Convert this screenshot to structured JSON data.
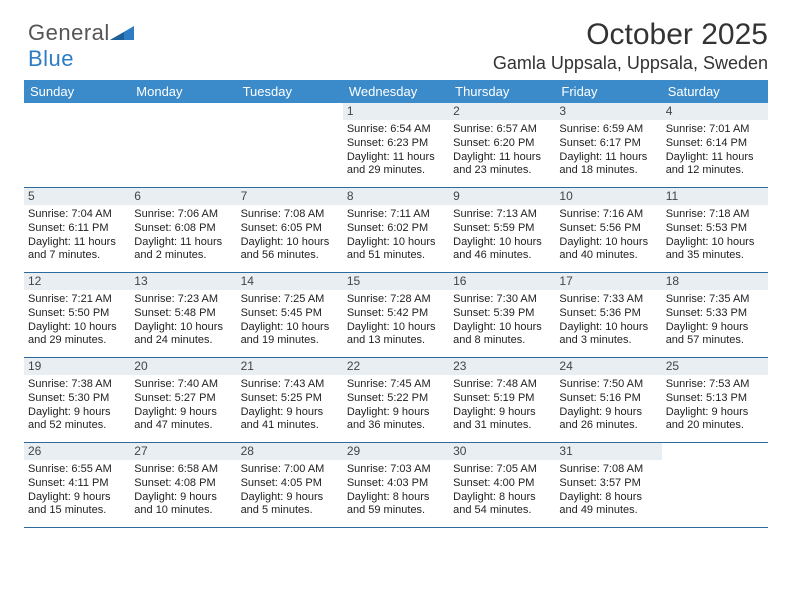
{
  "logo": {
    "text1": "General",
    "text2": "Blue"
  },
  "header": {
    "title": "October 2025",
    "location": "Gamla Uppsala, Uppsala, Sweden"
  },
  "colors": {
    "header_bg": "#3b8bca",
    "daynum_bg": "#e9eef3",
    "rule": "#2d6aa0",
    "logo_blue": "#2d7dc4"
  },
  "calendar": {
    "type": "table",
    "day_labels": [
      "Sunday",
      "Monday",
      "Tuesday",
      "Wednesday",
      "Thursday",
      "Friday",
      "Saturday"
    ],
    "weeks": [
      [
        {
          "blank": true
        },
        {
          "blank": true
        },
        {
          "blank": true
        },
        {
          "day": "1",
          "sunrise": "Sunrise: 6:54 AM",
          "sunset": "Sunset: 6:23 PM",
          "daylight": "Daylight: 11 hours and 29 minutes."
        },
        {
          "day": "2",
          "sunrise": "Sunrise: 6:57 AM",
          "sunset": "Sunset: 6:20 PM",
          "daylight": "Daylight: 11 hours and 23 minutes."
        },
        {
          "day": "3",
          "sunrise": "Sunrise: 6:59 AM",
          "sunset": "Sunset: 6:17 PM",
          "daylight": "Daylight: 11 hours and 18 minutes."
        },
        {
          "day": "4",
          "sunrise": "Sunrise: 7:01 AM",
          "sunset": "Sunset: 6:14 PM",
          "daylight": "Daylight: 11 hours and 12 minutes."
        }
      ],
      [
        {
          "day": "5",
          "sunrise": "Sunrise: 7:04 AM",
          "sunset": "Sunset: 6:11 PM",
          "daylight": "Daylight: 11 hours and 7 minutes."
        },
        {
          "day": "6",
          "sunrise": "Sunrise: 7:06 AM",
          "sunset": "Sunset: 6:08 PM",
          "daylight": "Daylight: 11 hours and 2 minutes."
        },
        {
          "day": "7",
          "sunrise": "Sunrise: 7:08 AM",
          "sunset": "Sunset: 6:05 PM",
          "daylight": "Daylight: 10 hours and 56 minutes."
        },
        {
          "day": "8",
          "sunrise": "Sunrise: 7:11 AM",
          "sunset": "Sunset: 6:02 PM",
          "daylight": "Daylight: 10 hours and 51 minutes."
        },
        {
          "day": "9",
          "sunrise": "Sunrise: 7:13 AM",
          "sunset": "Sunset: 5:59 PM",
          "daylight": "Daylight: 10 hours and 46 minutes."
        },
        {
          "day": "10",
          "sunrise": "Sunrise: 7:16 AM",
          "sunset": "Sunset: 5:56 PM",
          "daylight": "Daylight: 10 hours and 40 minutes."
        },
        {
          "day": "11",
          "sunrise": "Sunrise: 7:18 AM",
          "sunset": "Sunset: 5:53 PM",
          "daylight": "Daylight: 10 hours and 35 minutes."
        }
      ],
      [
        {
          "day": "12",
          "sunrise": "Sunrise: 7:21 AM",
          "sunset": "Sunset: 5:50 PM",
          "daylight": "Daylight: 10 hours and 29 minutes."
        },
        {
          "day": "13",
          "sunrise": "Sunrise: 7:23 AM",
          "sunset": "Sunset: 5:48 PM",
          "daylight": "Daylight: 10 hours and 24 minutes."
        },
        {
          "day": "14",
          "sunrise": "Sunrise: 7:25 AM",
          "sunset": "Sunset: 5:45 PM",
          "daylight": "Daylight: 10 hours and 19 minutes."
        },
        {
          "day": "15",
          "sunrise": "Sunrise: 7:28 AM",
          "sunset": "Sunset: 5:42 PM",
          "daylight": "Daylight: 10 hours and 13 minutes."
        },
        {
          "day": "16",
          "sunrise": "Sunrise: 7:30 AM",
          "sunset": "Sunset: 5:39 PM",
          "daylight": "Daylight: 10 hours and 8 minutes."
        },
        {
          "day": "17",
          "sunrise": "Sunrise: 7:33 AM",
          "sunset": "Sunset: 5:36 PM",
          "daylight": "Daylight: 10 hours and 3 minutes."
        },
        {
          "day": "18",
          "sunrise": "Sunrise: 7:35 AM",
          "sunset": "Sunset: 5:33 PM",
          "daylight": "Daylight: 9 hours and 57 minutes."
        }
      ],
      [
        {
          "day": "19",
          "sunrise": "Sunrise: 7:38 AM",
          "sunset": "Sunset: 5:30 PM",
          "daylight": "Daylight: 9 hours and 52 minutes."
        },
        {
          "day": "20",
          "sunrise": "Sunrise: 7:40 AM",
          "sunset": "Sunset: 5:27 PM",
          "daylight": "Daylight: 9 hours and 47 minutes."
        },
        {
          "day": "21",
          "sunrise": "Sunrise: 7:43 AM",
          "sunset": "Sunset: 5:25 PM",
          "daylight": "Daylight: 9 hours and 41 minutes."
        },
        {
          "day": "22",
          "sunrise": "Sunrise: 7:45 AM",
          "sunset": "Sunset: 5:22 PM",
          "daylight": "Daylight: 9 hours and 36 minutes."
        },
        {
          "day": "23",
          "sunrise": "Sunrise: 7:48 AM",
          "sunset": "Sunset: 5:19 PM",
          "daylight": "Daylight: 9 hours and 31 minutes."
        },
        {
          "day": "24",
          "sunrise": "Sunrise: 7:50 AM",
          "sunset": "Sunset: 5:16 PM",
          "daylight": "Daylight: 9 hours and 26 minutes."
        },
        {
          "day": "25",
          "sunrise": "Sunrise: 7:53 AM",
          "sunset": "Sunset: 5:13 PM",
          "daylight": "Daylight: 9 hours and 20 minutes."
        }
      ],
      [
        {
          "day": "26",
          "sunrise": "Sunrise: 6:55 AM",
          "sunset": "Sunset: 4:11 PM",
          "daylight": "Daylight: 9 hours and 15 minutes."
        },
        {
          "day": "27",
          "sunrise": "Sunrise: 6:58 AM",
          "sunset": "Sunset: 4:08 PM",
          "daylight": "Daylight: 9 hours and 10 minutes."
        },
        {
          "day": "28",
          "sunrise": "Sunrise: 7:00 AM",
          "sunset": "Sunset: 4:05 PM",
          "daylight": "Daylight: 9 hours and 5 minutes."
        },
        {
          "day": "29",
          "sunrise": "Sunrise: 7:03 AM",
          "sunset": "Sunset: 4:03 PM",
          "daylight": "Daylight: 8 hours and 59 minutes."
        },
        {
          "day": "30",
          "sunrise": "Sunrise: 7:05 AM",
          "sunset": "Sunset: 4:00 PM",
          "daylight": "Daylight: 8 hours and 54 minutes."
        },
        {
          "day": "31",
          "sunrise": "Sunrise: 7:08 AM",
          "sunset": "Sunset: 3:57 PM",
          "daylight": "Daylight: 8 hours and 49 minutes."
        },
        {
          "blank": true
        }
      ]
    ]
  }
}
